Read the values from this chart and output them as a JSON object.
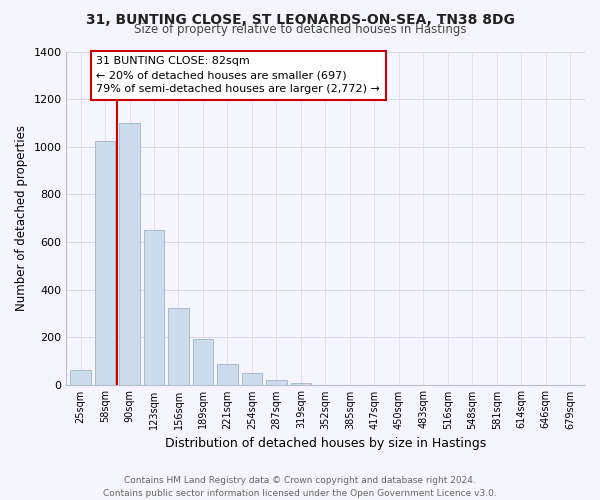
{
  "title1": "31, BUNTING CLOSE, ST LEONARDS-ON-SEA, TN38 8DG",
  "title2": "Size of property relative to detached houses in Hastings",
  "xlabel": "Distribution of detached houses by size in Hastings",
  "ylabel": "Number of detached properties",
  "categories": [
    "25sqm",
    "58sqm",
    "90sqm",
    "123sqm",
    "156sqm",
    "189sqm",
    "221sqm",
    "254sqm",
    "287sqm",
    "319sqm",
    "352sqm",
    "385sqm",
    "417sqm",
    "450sqm",
    "483sqm",
    "516sqm",
    "548sqm",
    "581sqm",
    "614sqm",
    "646sqm",
    "679sqm"
  ],
  "values": [
    65,
    1025,
    1100,
    650,
    325,
    195,
    90,
    50,
    20,
    10,
    0,
    0,
    0,
    0,
    0,
    0,
    0,
    0,
    0,
    0,
    0
  ],
  "bar_color": "#ccdcec",
  "bar_edge_color": "#aabccc",
  "marker_color": "#cc0000",
  "annotation_title": "31 BUNTING CLOSE: 82sqm",
  "annotation_line1": "← 20% of detached houses are smaller (697)",
  "annotation_line2": "79% of semi-detached houses are larger (2,772) →",
  "annotation_box_facecolor": "#ffffff",
  "annotation_box_edgecolor": "#cc0000",
  "ylim": [
    0,
    1400
  ],
  "yticks": [
    0,
    200,
    400,
    600,
    800,
    1000,
    1200,
    1400
  ],
  "footer1": "Contains HM Land Registry data © Crown copyright and database right 2024.",
  "footer2": "Contains public sector information licensed under the Open Government Licence v3.0.",
  "background_color": "#f5f5ff",
  "grid_color": "#d8d8e8"
}
